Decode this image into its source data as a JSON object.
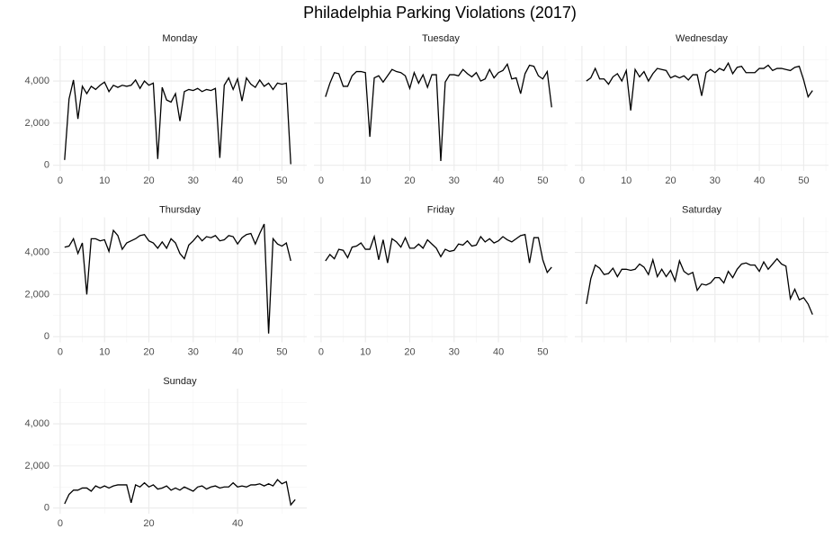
{
  "title": "Philadelphia Parking Violations (2017)",
  "chart_data": [
    {
      "type": "line",
      "title": "Monday",
      "color": "#000000",
      "x": [
        1,
        2,
        3,
        4,
        5,
        6,
        7,
        8,
        9,
        10,
        11,
        12,
        13,
        14,
        15,
        16,
        17,
        18,
        19,
        20,
        21,
        22,
        23,
        24,
        25,
        26,
        27,
        28,
        29,
        30,
        31,
        32,
        33,
        34,
        35,
        36,
        37,
        38,
        39,
        40,
        41,
        42,
        43,
        44,
        45,
        46,
        47,
        48,
        49,
        50,
        51,
        52
      ],
      "values": [
        250,
        3150,
        4050,
        2200,
        3750,
        3400,
        3750,
        3600,
        3800,
        3950,
        3500,
        3800,
        3700,
        3800,
        3750,
        3800,
        4050,
        3650,
        4000,
        3800,
        3900,
        300,
        3700,
        3100,
        3000,
        3400,
        2100,
        3500,
        3600,
        3550,
        3650,
        3500,
        3600,
        3550,
        3650,
        350,
        3800,
        4150,
        3600,
        4100,
        3050,
        4150,
        3850,
        3700,
        4050,
        3750,
        3900,
        3600,
        3900,
        3850,
        3900,
        50
      ],
      "xlim": [
        -1.6,
        55.6
      ],
      "ylim": [
        -270,
        5670
      ],
      "xticks": [
        0,
        10,
        20,
        30,
        40,
        50
      ],
      "minor_xticks": [
        5,
        15,
        25,
        35,
        45,
        55
      ],
      "yticks": [
        0,
        {
          "value": 2000,
          "label": "2,000"
        },
        {
          "value": 4000,
          "label": "4,000"
        }
      ],
      "minor_yticks": [
        1000,
        3000,
        5000
      ],
      "x_axis_labels": true,
      "y_axis_labels": true
    },
    {
      "type": "line",
      "title": "Tuesday",
      "color": "#000000",
      "x": [
        1,
        2,
        3,
        4,
        5,
        6,
        7,
        8,
        9,
        10,
        11,
        12,
        13,
        14,
        15,
        16,
        17,
        18,
        19,
        20,
        21,
        22,
        23,
        24,
        25,
        26,
        27,
        28,
        29,
        30,
        31,
        32,
        33,
        34,
        35,
        36,
        37,
        38,
        39,
        40,
        41,
        42,
        43,
        44,
        45,
        46,
        47,
        48,
        49,
        50,
        51,
        52
      ],
      "values": [
        3250,
        3900,
        4400,
        4350,
        3750,
        3750,
        4250,
        4450,
        4450,
        4400,
        1350,
        4150,
        4250,
        3950,
        4250,
        4550,
        4450,
        4400,
        4250,
        3650,
        4400,
        3900,
        4300,
        3700,
        4300,
        4300,
        200,
        3950,
        4300,
        4300,
        4250,
        4550,
        4350,
        4200,
        4400,
        4000,
        4100,
        4550,
        4150,
        4400,
        4500,
        4800,
        4100,
        4150,
        3400,
        4350,
        4750,
        4700,
        4250,
        4100,
        4450,
        2750
      ],
      "xlim": [
        -1.6,
        55.6
      ],
      "ylim": [
        -270,
        5670
      ],
      "xticks": [
        0,
        10,
        20,
        30,
        40,
        50
      ],
      "minor_xticks": [
        5,
        15,
        25,
        35,
        45,
        55
      ],
      "yticks": [
        0,
        {
          "value": 2000,
          "label": "2,000"
        },
        {
          "value": 4000,
          "label": "4,000"
        }
      ],
      "minor_yticks": [
        1000,
        3000,
        5000
      ],
      "x_axis_labels": true,
      "y_axis_labels": false
    },
    {
      "type": "line",
      "title": "Wednesday",
      "color": "#000000",
      "x": [
        1,
        2,
        3,
        4,
        5,
        6,
        7,
        8,
        9,
        10,
        11,
        12,
        13,
        14,
        15,
        16,
        17,
        18,
        19,
        20,
        21,
        22,
        23,
        24,
        25,
        26,
        27,
        28,
        29,
        30,
        31,
        32,
        33,
        34,
        35,
        36,
        37,
        38,
        39,
        40,
        41,
        42,
        43,
        44,
        45,
        46,
        47,
        48,
        49,
        50,
        51,
        52
      ],
      "values": [
        4000,
        4150,
        4600,
        4100,
        4100,
        3850,
        4200,
        4350,
        4000,
        4500,
        2600,
        4550,
        4200,
        4450,
        4000,
        4350,
        4600,
        4550,
        4500,
        4150,
        4250,
        4150,
        4250,
        4050,
        4300,
        4300,
        3300,
        4400,
        4550,
        4400,
        4600,
        4500,
        4850,
        4350,
        4650,
        4700,
        4400,
        4400,
        4400,
        4600,
        4600,
        4750,
        4500,
        4600,
        4600,
        4550,
        4500,
        4650,
        4700,
        4050,
        3250,
        3550
      ],
      "xlim": [
        -1.6,
        55.6
      ],
      "ylim": [
        -270,
        5670
      ],
      "xticks": [
        0,
        10,
        20,
        30,
        40,
        50
      ],
      "minor_xticks": [
        5,
        15,
        25,
        35,
        45,
        55
      ],
      "yticks": [
        0,
        {
          "value": 2000,
          "label": "2,000"
        },
        {
          "value": 4000,
          "label": "4,000"
        }
      ],
      "minor_yticks": [
        1000,
        3000,
        5000
      ],
      "x_axis_labels": true,
      "y_axis_labels": false
    },
    {
      "type": "line",
      "title": "Thursday",
      "color": "#000000",
      "x": [
        1,
        2,
        3,
        4,
        5,
        6,
        7,
        8,
        9,
        10,
        11,
        12,
        13,
        14,
        15,
        16,
        17,
        18,
        19,
        20,
        21,
        22,
        23,
        24,
        25,
        26,
        27,
        28,
        29,
        30,
        31,
        32,
        33,
        34,
        35,
        36,
        37,
        38,
        39,
        40,
        41,
        42,
        43,
        44,
        45,
        46,
        47,
        48,
        49,
        50,
        51,
        52
      ],
      "values": [
        4250,
        4300,
        4650,
        3950,
        4450,
        2000,
        4650,
        4650,
        4550,
        4600,
        4050,
        5050,
        4800,
        4150,
        4450,
        4550,
        4650,
        4800,
        4850,
        4550,
        4450,
        4200,
        4500,
        4200,
        4650,
        4450,
        3950,
        3700,
        4350,
        4550,
        4800,
        4550,
        4750,
        4700,
        4800,
        4550,
        4600,
        4800,
        4750,
        4400,
        4700,
        4850,
        4900,
        4400,
        4900,
        5350,
        150,
        4650,
        4400,
        4300,
        4450,
        3600
      ],
      "xlim": [
        -1.6,
        55.6
      ],
      "ylim": [
        -270,
        5670
      ],
      "xticks": [
        0,
        10,
        20,
        30,
        40,
        50
      ],
      "minor_xticks": [
        5,
        15,
        25,
        35,
        45,
        55
      ],
      "yticks": [
        0,
        {
          "value": 2000,
          "label": "2,000"
        },
        {
          "value": 4000,
          "label": "4,000"
        }
      ],
      "minor_yticks": [
        1000,
        3000,
        5000
      ],
      "x_axis_labels": true,
      "y_axis_labels": true
    },
    {
      "type": "line",
      "title": "Friday",
      "color": "#000000",
      "x": [
        1,
        2,
        3,
        4,
        5,
        6,
        7,
        8,
        9,
        10,
        11,
        12,
        13,
        14,
        15,
        16,
        17,
        18,
        19,
        20,
        21,
        22,
        23,
        24,
        25,
        26,
        27,
        28,
        29,
        30,
        31,
        32,
        33,
        34,
        35,
        36,
        37,
        38,
        39,
        40,
        41,
        42,
        43,
        44,
        45,
        46,
        47,
        48,
        49,
        50,
        51,
        52
      ],
      "values": [
        3600,
        3900,
        3700,
        4150,
        4100,
        3750,
        4250,
        4300,
        4450,
        4150,
        4150,
        4750,
        3650,
        4600,
        3500,
        4650,
        4500,
        4250,
        4700,
        4200,
        4200,
        4400,
        4200,
        4600,
        4400,
        4200,
        3800,
        4150,
        4050,
        4100,
        4400,
        4350,
        4550,
        4300,
        4350,
        4750,
        4500,
        4650,
        4450,
        4550,
        4750,
        4600,
        4500,
        4650,
        4800,
        4850,
        3500,
        4700,
        4700,
        3650,
        3050,
        3300
      ],
      "xlim": [
        -1.6,
        55.6
      ],
      "ylim": [
        -270,
        5670
      ],
      "xticks": [
        0,
        10,
        20,
        30,
        40,
        50
      ],
      "minor_xticks": [
        5,
        15,
        25,
        35,
        45,
        55
      ],
      "yticks": [
        0,
        {
          "value": 2000,
          "label": "2,000"
        },
        {
          "value": 4000,
          "label": "4,000"
        }
      ],
      "minor_yticks": [
        1000,
        3000,
        5000
      ],
      "x_axis_labels": true,
      "y_axis_labels": false
    },
    {
      "type": "line",
      "title": "Saturday",
      "color": "#000000",
      "x": [
        1,
        2,
        3,
        4,
        5,
        6,
        7,
        8,
        9,
        10,
        11,
        12,
        13,
        14,
        15,
        16,
        17,
        18,
        19,
        20,
        21,
        22,
        23,
        24,
        25,
        26,
        27,
        28,
        29,
        30,
        31,
        32,
        33,
        34,
        35,
        36,
        37,
        38,
        39,
        40,
        41,
        42,
        43,
        44,
        45,
        46,
        47,
        48,
        49,
        50,
        51,
        52
      ],
      "values": [
        1550,
        2750,
        3400,
        3250,
        2950,
        3000,
        3250,
        2850,
        3200,
        3200,
        3150,
        3200,
        3450,
        3300,
        2950,
        3650,
        2850,
        3200,
        2850,
        3150,
        2650,
        3600,
        3100,
        2950,
        3050,
        2200,
        2500,
        2450,
        2550,
        2800,
        2800,
        2550,
        3100,
        2800,
        3200,
        3450,
        3500,
        3400,
        3400,
        3100,
        3550,
        3200,
        3450,
        3700,
        3450,
        3350,
        1800,
        2250,
        1750,
        1850,
        1550,
        1050
      ],
      "xlim": [
        -1.6,
        55.6
      ],
      "ylim": [
        -270,
        5670
      ],
      "xticks": [
        0,
        10,
        20,
        30,
        40,
        50
      ],
      "minor_xticks": [
        5,
        15,
        25,
        35,
        45,
        55
      ],
      "yticks": [
        0,
        {
          "value": 2000,
          "label": "2,000"
        },
        {
          "value": 4000,
          "label": "4,000"
        }
      ],
      "minor_yticks": [
        1000,
        3000,
        5000
      ],
      "x_axis_labels": false,
      "y_axis_labels": false
    },
    {
      "type": "line",
      "title": "Sunday",
      "color": "#000000",
      "x": [
        1,
        2,
        3,
        4,
        5,
        6,
        7,
        8,
        9,
        10,
        11,
        12,
        13,
        14,
        15,
        16,
        17,
        18,
        19,
        20,
        21,
        22,
        23,
        24,
        25,
        26,
        27,
        28,
        29,
        30,
        31,
        32,
        33,
        34,
        35,
        36,
        37,
        38,
        39,
        40,
        41,
        42,
        43,
        44,
        45,
        46,
        47,
        48,
        49,
        50,
        51,
        52,
        53
      ],
      "values": [
        200,
        650,
        850,
        850,
        950,
        950,
        800,
        1050,
        950,
        1050,
        950,
        1050,
        1100,
        1100,
        1100,
        250,
        1100,
        1000,
        1200,
        1000,
        1100,
        900,
        950,
        1050,
        850,
        950,
        850,
        1000,
        900,
        800,
        1000,
        1050,
        900,
        1000,
        1050,
        950,
        1000,
        1000,
        1200,
        1000,
        1050,
        1000,
        1100,
        1100,
        1150,
        1050,
        1150,
        1050,
        1350,
        1150,
        1250,
        150,
        400
      ],
      "xlim": [
        -1.6,
        55.6
      ],
      "ylim": [
        -270,
        5670
      ],
      "xticks": [
        0,
        20,
        40
      ],
      "minor_xticks": [
        10,
        30,
        50
      ],
      "yticks": [
        0,
        {
          "value": 2000,
          "label": "2,000"
        },
        {
          "value": 4000,
          "label": "4,000"
        }
      ],
      "minor_yticks": [
        1000,
        3000,
        5000
      ],
      "x_axis_labels": true,
      "y_axis_labels": true
    }
  ]
}
